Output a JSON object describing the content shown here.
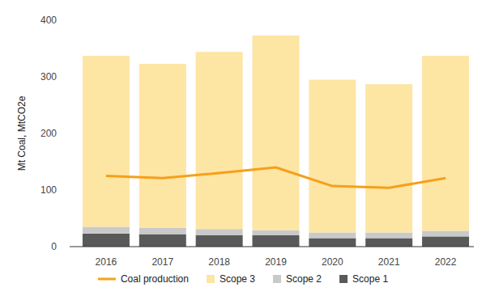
{
  "chart_data": {
    "type": "bar",
    "y_label": "Mt Coal, MtCO2e",
    "categories": [
      "2016",
      "2017",
      "2018",
      "2019",
      "2020",
      "2021",
      "2022"
    ],
    "stacked": true,
    "grid": false,
    "legend": "bottom",
    "series": [
      {
        "name": "Coal production",
        "type": "line",
        "color": "#f5a01a",
        "values": [
          125,
          121,
          130,
          140,
          107,
          104,
          121
        ]
      },
      {
        "name": "Scope 3",
        "type": "bar",
        "color": "#fde5a4",
        "values": [
          302,
          290,
          313,
          344,
          270,
          262,
          309
        ]
      },
      {
        "name": "Scope 2",
        "type": "bar",
        "color": "#c9c9c9",
        "values": [
          12,
          11,
          11,
          9,
          10,
          10,
          10
        ]
      },
      {
        "name": "Scope 1",
        "type": "bar",
        "color": "#595959",
        "values": [
          23,
          22,
          20,
          20,
          15,
          15,
          18
        ]
      }
    ],
    "ylim": [
      0,
      400
    ],
    "yticks": [
      0,
      100,
      200,
      300,
      400
    ]
  }
}
